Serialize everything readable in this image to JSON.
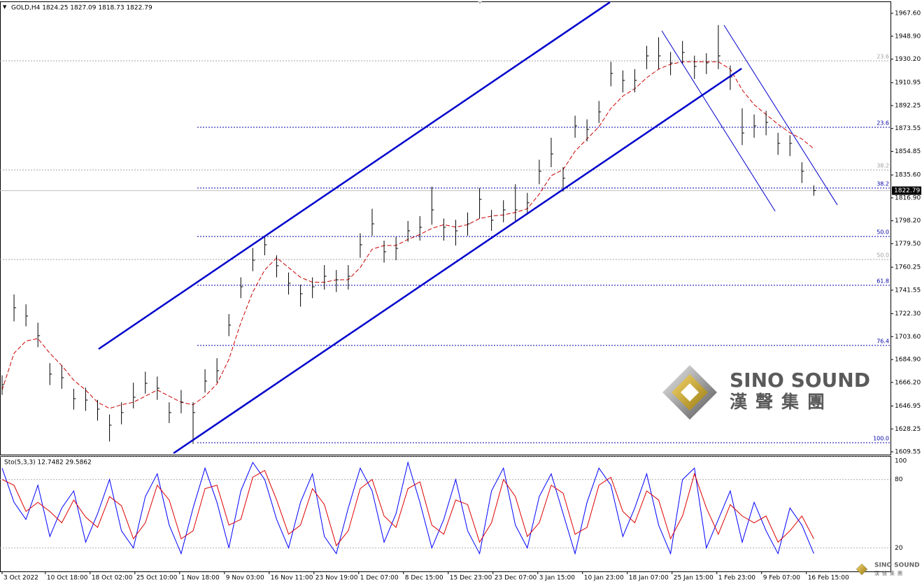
{
  "chart_data": [
    {
      "type": "ohlc",
      "title": "GOLD,H4  1824.25 1827.09 1818.73 1822.79",
      "color": "#000000",
      "xlim": [
        -1.4,
        595.4
      ],
      "ylim": [
        1607.27,
        1977.31
      ],
      "yticks": [
        {
          "value": 1967.6,
          "label": "1967.60"
        },
        {
          "value": 1948.9,
          "label": "1948.90"
        },
        {
          "value": 1930.2,
          "label": "1930.20"
        },
        {
          "value": 1910.95,
          "label": "1910.95"
        },
        {
          "value": 1892.25,
          "label": "1892.25"
        },
        {
          "value": 1873.55,
          "label": "1873.55"
        },
        {
          "value": 1854.85,
          "label": "1854.85"
        },
        {
          "value": 1835.6,
          "label": "1835.60"
        },
        {
          "value": 1816.9,
          "label": "1816.90"
        },
        {
          "value": 1798.2,
          "label": "1798.20"
        },
        {
          "value": 1779.5,
          "label": "1779.50"
        },
        {
          "value": 1760.25,
          "label": "1760.25"
        },
        {
          "value": 1741.55,
          "label": "1741.55"
        },
        {
          "value": 1722.3,
          "label": "1722.30"
        },
        {
          "value": 1703.6,
          "label": "1703.60"
        },
        {
          "value": 1684.9,
          "label": "1684.90"
        },
        {
          "value": 1666.2,
          "label": "1666.20"
        },
        {
          "value": 1646.95,
          "label": "1646.95"
        },
        {
          "value": 1628.25,
          "label": "1628.25"
        },
        {
          "value": 1609.55,
          "label": "1609.55"
        }
      ],
      "x": [
        0,
        8,
        16,
        24,
        32,
        40,
        48,
        56,
        64,
        72,
        80,
        88,
        96,
        104,
        112,
        120,
        128,
        136,
        144,
        152,
        160,
        168,
        176,
        184,
        192,
        200,
        208,
        216,
        224,
        232,
        240,
        248,
        256,
        264,
        272,
        280,
        288,
        296,
        304,
        312,
        320,
        328,
        336,
        344,
        352,
        360,
        368,
        376,
        384,
        392,
        400,
        408,
        416,
        424,
        432,
        440,
        448,
        456,
        464,
        472,
        480,
        488,
        496,
        504,
        512,
        520,
        528,
        536,
        544
      ],
      "high": [
        1672,
        1738,
        1730,
        1715,
        1682,
        1680,
        1661,
        1662,
        1652,
        1640,
        1650,
        1666,
        1675,
        1671,
        1650,
        1660,
        1650,
        1677,
        1686,
        1722,
        1752,
        1776,
        1786,
        1770,
        1756,
        1746,
        1752,
        1762,
        1758,
        1762,
        1788,
        1808,
        1782,
        1785,
        1798,
        1802,
        1826,
        1800,
        1799,
        1805,
        1825,
        1807,
        1815,
        1828,
        1821,
        1848,
        1866,
        1842,
        1884,
        1881,
        1896,
        1928,
        1921,
        1922,
        1941,
        1948,
        1936,
        1945,
        1933,
        1935,
        1958,
        1925,
        1890,
        1885,
        1888,
        1870,
        1868,
        1846,
        1827.1
      ],
      "low": [
        1656,
        1716,
        1712,
        1695,
        1664,
        1661,
        1644,
        1643,
        1635,
        1618,
        1632,
        1645,
        1657,
        1652,
        1633,
        1641,
        1616,
        1658,
        1666,
        1704,
        1735,
        1757,
        1770,
        1752,
        1738,
        1728,
        1735,
        1742,
        1740,
        1742,
        1768,
        1786,
        1764,
        1766,
        1781,
        1782,
        1795,
        1782,
        1778,
        1786,
        1800,
        1790,
        1797,
        1797,
        1803,
        1828,
        1842,
        1822,
        1866,
        1863,
        1878,
        1908,
        1903,
        1903,
        1922,
        1922,
        1917,
        1926,
        1914,
        1918,
        1922,
        1905,
        1860,
        1866,
        1868,
        1852,
        1851,
        1829,
        1818.7
      ],
      "close": [
        1664.4,
        1727.2,
        1720.4,
        1704.4,
        1673.0,
        1670.1,
        1653.0,
        1651.8,
        1644.4,
        1631.3,
        1641.6,
        1654.1,
        1665.5,
        1661.5,
        1641.6,
        1650.1,
        1641.6,
        1667.3,
        1675.8,
        1713.0,
        1744.3,
        1766.0,
        1778.6,
        1761.5,
        1747.2,
        1738.6,
        1744.3,
        1752.9,
        1750.0,
        1752.9,
        1778.6,
        1795.7,
        1772.9,
        1775.7,
        1790.0,
        1792.9,
        1807.1,
        1792.9,
        1790.0,
        1795.7,
        1815.7,
        1798.6,
        1807.1,
        1807.1,
        1812.9,
        1838.6,
        1852.8,
        1832.9,
        1875.7,
        1872.8,
        1887.1,
        1918.5,
        1912.8,
        1912.8,
        1932.8,
        1932.8,
        1927.1,
        1935.6,
        1924.2,
        1927.1,
        1932.8,
        1915.7,
        1869.9,
        1875.7,
        1878.5,
        1861.4,
        1861.4,
        1838.6,
        1822.8
      ],
      "ma": {
        "color": "#cc0000",
        "values": [
          1660,
          1690,
          1700,
          1702,
          1690,
          1680,
          1668,
          1660,
          1650,
          1645,
          1648,
          1650,
          1655,
          1660,
          1655,
          1650,
          1648,
          1655,
          1665,
          1685,
          1715,
          1740,
          1758,
          1768,
          1760,
          1752,
          1748,
          1748,
          1750,
          1750,
          1760,
          1775,
          1778,
          1778,
          1783,
          1787,
          1792,
          1795,
          1793,
          1795,
          1800,
          1802,
          1803,
          1805,
          1808,
          1820,
          1835,
          1840,
          1855,
          1865,
          1875,
          1890,
          1900,
          1906,
          1915,
          1922,
          1926,
          1928,
          1928,
          1928,
          1928,
          1922,
          1905,
          1893,
          1885,
          1877,
          1870,
          1865,
          1857
        ]
      },
      "channel_lines": {
        "color": "#0000cc",
        "lines": [
          {
            "x": [
              64.7,
              407.4
            ],
            "y": [
              1693.5,
              1976.7
            ]
          },
          {
            "x": [
              114.9,
              495.6
            ],
            "y": [
              1608.4,
              1922.5
            ]
          }
        ]
      },
      "trend_lines": {
        "color": "#0000cc",
        "lines": [
          {
            "x": [
              442.1,
              518.1
            ],
            "y": [
              1953.3,
              1806.0
            ]
          },
          {
            "x": [
              483.8,
              559.8
            ],
            "y": [
              1957.9,
              1811.1
            ]
          }
        ]
      },
      "fib_sets": [
        {
          "color": "#0000aa",
          "start_x": 130.8,
          "levels": [
            {
              "label": "23.6",
              "price": 1874.5
            },
            {
              "label": "38.2",
              "price": 1824.9
            },
            {
              "label": "50.0",
              "price": 1785.4
            },
            {
              "label": "61.8",
              "price": 1745.5
            },
            {
              "label": "76.4",
              "price": 1696.4
            },
            {
              "label": "100.0",
              "price": 1617.0
            }
          ]
        },
        {
          "color": "#a0a0a0",
          "levels": [
            {
              "label": "23.6",
              "price": 1928.8
            },
            {
              "label": "38.2",
              "price": 1839.7
            },
            {
              "label": "50.0",
              "price": 1766.6
            }
          ]
        }
      ],
      "current_price": 1822.79
    },
    {
      "type": "line",
      "title": "Sto(5,3,3) 12.7482 29.5862",
      "xlim": [
        -1.4,
        595.4
      ],
      "ylim": [
        0,
        100
      ],
      "yticks": [
        100,
        80,
        20
      ],
      "x": [
        0,
        8,
        16,
        24,
        32,
        40,
        48,
        56,
        64,
        72,
        80,
        88,
        96,
        104,
        112,
        120,
        128,
        136,
        144,
        152,
        160,
        168,
        176,
        184,
        192,
        200,
        208,
        216,
        224,
        232,
        240,
        248,
        256,
        264,
        272,
        280,
        288,
        296,
        304,
        312,
        320,
        328,
        336,
        344,
        352,
        360,
        368,
        376,
        384,
        392,
        400,
        408,
        416,
        424,
        432,
        440,
        448,
        456,
        464,
        472,
        480,
        488,
        496,
        504,
        512,
        520,
        528,
        536,
        544
      ],
      "xticks": [
        {
          "value": 0,
          "label": "3 Oct 2022"
        },
        {
          "value": 29,
          "label": "10 Oct 18:00"
        },
        {
          "value": 59,
          "label": "18 Oct 02:00"
        },
        {
          "value": 89,
          "label": "25 Oct 10:00"
        },
        {
          "value": 119,
          "label": "1 Nov 18:00"
        },
        {
          "value": 149,
          "label": "9 Nov 03:00"
        },
        {
          "value": 179,
          "label": "16 Nov 11:00"
        },
        {
          "value": 209,
          "label": "23 Nov 19:00"
        },
        {
          "value": 239,
          "label": "1 Dec 07:00"
        },
        {
          "value": 269,
          "label": "8 Dec 15:00"
        },
        {
          "value": 299,
          "label": "15 Dec 23:00"
        },
        {
          "value": 329,
          "label": "23 Dec 07:00"
        },
        {
          "value": 359,
          "label": "3 Jan 15:00"
        },
        {
          "value": 389,
          "label": "10 Jan 23:00"
        },
        {
          "value": 419,
          "label": "18 Jan 07:00"
        },
        {
          "value": 449,
          "label": "25 Jan 15:00"
        },
        {
          "value": 479,
          "label": "1 Feb 23:00"
        },
        {
          "value": 509,
          "label": "9 Feb 07:00"
        },
        {
          "value": 539,
          "label": "16 Feb 15:00"
        }
      ],
      "series": [
        {
          "color": "#0000ff",
          "values": [
            90,
            60,
            45,
            75,
            30,
            55,
            70,
            25,
            50,
            80,
            35,
            20,
            65,
            85,
            40,
            15,
            55,
            90,
            60,
            20,
            70,
            95,
            80,
            45,
            20,
            60,
            85,
            30,
            15,
            55,
            90,
            70,
            25,
            50,
            95,
            60,
            20,
            45,
            80,
            35,
            15,
            70,
            90,
            40,
            20,
            65,
            85,
            50,
            15,
            60,
            90,
            75,
            30,
            55,
            85,
            40,
            15,
            80,
            90,
            20,
            45,
            70,
            25,
            60,
            35,
            15,
            55,
            40,
            15
          ]
        },
        {
          "color": "#dd0000",
          "values": [
            80,
            75,
            52,
            60,
            52,
            42,
            62,
            47,
            38,
            65,
            57,
            28,
            42,
            75,
            62,
            28,
            35,
            72,
            75,
            40,
            45,
            82,
            88,
            62,
            32,
            40,
            72,
            58,
            22,
            35,
            72,
            80,
            48,
            38,
            72,
            78,
            40,
            32,
            62,
            58,
            25,
            42,
            80,
            65,
            30,
            42,
            75,
            68,
            32,
            38,
            75,
            82,
            52,
            42,
            70,
            62,
            28,
            48,
            85,
            55,
            32,
            58,
            48,
            42,
            48,
            25,
            35,
            48,
            28
          ]
        }
      ]
    }
  ],
  "logo": {
    "name": "SINO SOUND",
    "subtitle": "漢聲集團"
  }
}
